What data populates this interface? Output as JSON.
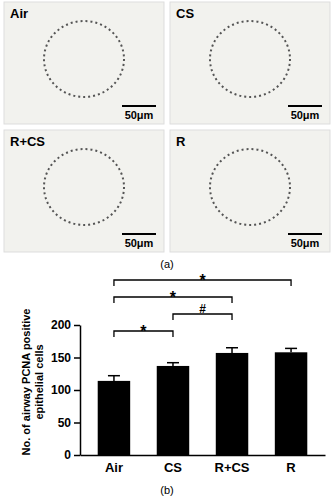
{
  "panel_a": {
    "label": "(a)",
    "images": [
      {
        "label": "Air",
        "scale_bar": "50μm"
      },
      {
        "label": "CS",
        "scale_bar": "50μm"
      },
      {
        "label": "R+CS",
        "scale_bar": "50μm"
      },
      {
        "label": "R",
        "scale_bar": "50μm"
      }
    ]
  },
  "chart_data": {
    "type": "bar",
    "panel_label": "(b)",
    "ylabel": [
      "No. of airway PCNA positive",
      "epithelial cells"
    ],
    "categories": [
      "Air",
      "CS",
      "R+CS",
      "R"
    ],
    "values": [
      114,
      137,
      157,
      158
    ],
    "errors": [
      8,
      5,
      8,
      6
    ],
    "color": "#000000",
    "ylim": [
      0,
      200
    ],
    "yticks": [
      0,
      50,
      100,
      150,
      200
    ],
    "grid": false,
    "significance": [
      {
        "between": [
          0,
          3
        ],
        "label": "*"
      },
      {
        "between": [
          0,
          2
        ],
        "label": "*"
      },
      {
        "between": [
          1,
          2
        ],
        "label": "#"
      },
      {
        "between": [
          0,
          1
        ],
        "label": "*"
      }
    ]
  }
}
